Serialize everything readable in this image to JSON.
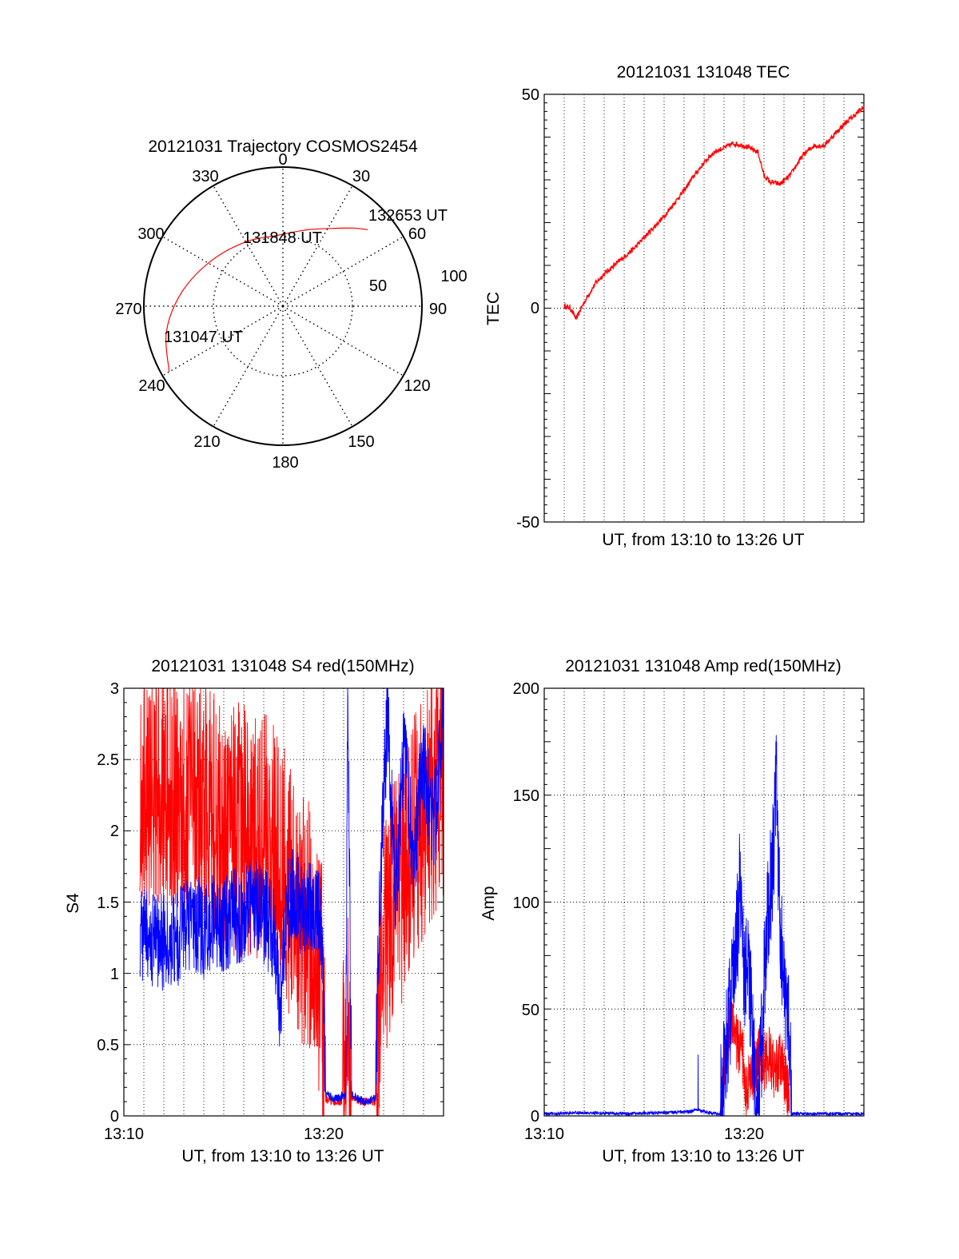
{
  "chart_data": [
    {
      "type": "polar",
      "title": "20121031 Trajectory COSMOS2454",
      "azimuth_labels": [
        "0",
        "30",
        "60",
        "90",
        "120",
        "150",
        "180",
        "210",
        "240",
        "270",
        "300",
        "330"
      ],
      "radius_labels": [
        "50",
        "100"
      ],
      "series_color": "#ff0000",
      "trajectory": [
        {
          "az": 240,
          "el": 5
        },
        {
          "az": 258,
          "el": 13
        },
        {
          "az": 278,
          "el": 24
        },
        {
          "az": 302,
          "el": 35
        },
        {
          "az": 330,
          "el": 42
        },
        {
          "az": 356,
          "el": 44
        },
        {
          "az": 18,
          "el": 38
        },
        {
          "az": 33,
          "el": 30
        },
        {
          "az": 42,
          "el": 22
        },
        {
          "az": 48,
          "el": 16
        }
      ],
      "annotations": [
        {
          "text": "132653 UT",
          "az": 48,
          "el": 16
        },
        {
          "text": "131848 UT",
          "az": 356,
          "el": 44
        },
        {
          "text": "131047 UT",
          "az": 240,
          "el": 5
        }
      ]
    },
    {
      "type": "line",
      "title": "20121031 131048 TEC",
      "xlabel": "UT, from 13:10 to 13:26 UT",
      "ylabel": "TEC",
      "xlim_min": [
        10.0,
        26.0
      ],
      "ylim": [
        -50,
        50
      ],
      "yticks": [
        "50",
        "0",
        "-50"
      ],
      "grid": true,
      "series": [
        {
          "color": "#ff0000",
          "points": [
            [
              11.0,
              0.5
            ],
            [
              11.3,
              0
            ],
            [
              11.6,
              -2.5
            ],
            [
              11.9,
              0.5
            ],
            [
              12.2,
              3
            ],
            [
              12.6,
              6
            ],
            [
              13.0,
              8
            ],
            [
              13.5,
              10
            ],
            [
              14.0,
              12
            ],
            [
              14.5,
              14
            ],
            [
              15.0,
              16.5
            ],
            [
              15.5,
              19
            ],
            [
              16.0,
              21.5
            ],
            [
              16.5,
              24.5
            ],
            [
              17.0,
              27.5
            ],
            [
              17.5,
              31
            ],
            [
              18.0,
              34
            ],
            [
              18.5,
              36.5
            ],
            [
              19.0,
              37.5
            ],
            [
              19.5,
              38.5
            ],
            [
              20.0,
              38
            ],
            [
              20.7,
              36.5
            ],
            [
              21.0,
              31
            ],
            [
              21.3,
              29.5
            ],
            [
              21.8,
              29
            ],
            [
              22.3,
              31
            ],
            [
              22.7,
              34
            ],
            [
              23.0,
              36
            ],
            [
              23.5,
              38
            ],
            [
              24.0,
              38
            ],
            [
              24.5,
              40.5
            ],
            [
              25.0,
              43
            ],
            [
              25.5,
              45
            ],
            [
              26.0,
              47
            ]
          ]
        }
      ]
    },
    {
      "type": "line",
      "title": "20121031 131048 S4 red(150MHz)",
      "xlabel": "UT, from 13:10 to 13:26 UT",
      "ylabel": "S4",
      "xlim_min": [
        10.0,
        26.0
      ],
      "ylim": [
        0,
        3
      ],
      "xticks": [
        "13:10",
        "13:20"
      ],
      "yticks": [
        "0",
        "0.5",
        "1",
        "1.5",
        "2",
        "2.5",
        "3"
      ],
      "grid": true,
      "series": [
        {
          "color": "#ff0000",
          "points": [
            [
              10.8,
              2.3
            ],
            [
              11.5,
              2.4
            ],
            [
              12.5,
              2.3
            ],
            [
              13.5,
              2.2
            ],
            [
              14.5,
              2.1
            ],
            [
              15.5,
              2.0
            ],
            [
              16.5,
              2.0
            ],
            [
              17.5,
              1.9
            ],
            [
              18.3,
              1.6
            ],
            [
              18.8,
              1.4
            ],
            [
              19.3,
              1.3
            ],
            [
              19.6,
              1.1
            ],
            [
              19.9,
              0.9
            ],
            [
              20.1,
              0.12
            ],
            [
              20.5,
              0.1
            ],
            [
              20.9,
              0.1
            ],
            [
              21.2,
              0.7
            ],
            [
              21.4,
              0.12
            ],
            [
              22.0,
              0.1
            ],
            [
              22.6,
              0.1
            ],
            [
              23.0,
              1.3
            ],
            [
              23.5,
              1.5
            ],
            [
              24.0,
              1.7
            ],
            [
              24.5,
              1.9
            ],
            [
              25.0,
              2.1
            ],
            [
              25.5,
              2.3
            ],
            [
              26.0,
              2.4
            ]
          ]
        },
        {
          "color": "#0000ff",
          "points": [
            [
              10.8,
              1.3
            ],
            [
              11.5,
              1.25
            ],
            [
              12.3,
              1.2
            ],
            [
              13.0,
              1.3
            ],
            [
              13.5,
              1.35
            ],
            [
              14.0,
              1.3
            ],
            [
              14.5,
              1.4
            ],
            [
              15.0,
              1.35
            ],
            [
              15.5,
              1.4
            ],
            [
              16.0,
              1.4
            ],
            [
              16.5,
              1.5
            ],
            [
              17.0,
              1.4
            ],
            [
              17.5,
              1.3
            ],
            [
              17.8,
              0.75
            ],
            [
              18.1,
              1.4
            ],
            [
              18.6,
              1.6
            ],
            [
              19.0,
              1.4
            ],
            [
              19.5,
              1.5
            ],
            [
              19.9,
              1.3
            ],
            [
              20.1,
              0.15
            ],
            [
              20.6,
              0.12
            ],
            [
              21.1,
              0.15
            ],
            [
              21.2,
              3.0
            ],
            [
              21.4,
              0.15
            ],
            [
              22.0,
              0.1
            ],
            [
              22.6,
              0.12
            ],
            [
              22.8,
              1.6
            ],
            [
              23.2,
              2.8
            ],
            [
              23.6,
              1.5
            ],
            [
              24.0,
              2.6
            ],
            [
              24.5,
              1.8
            ],
            [
              25.0,
              2.5
            ],
            [
              25.5,
              2.0
            ],
            [
              26.0,
              2.8
            ]
          ]
        }
      ]
    },
    {
      "type": "line",
      "title": "20121031 131048 Amp red(150MHz)",
      "xlabel": "UT, from 13:10 to 13:26 UT",
      "ylabel": "Amp",
      "xlim_min": [
        10.0,
        26.0
      ],
      "ylim": [
        0,
        200
      ],
      "xticks": [
        "13:10",
        "13:20"
      ],
      "yticks": [
        "0",
        "50",
        "100",
        "150",
        "200"
      ],
      "grid": true,
      "series": [
        {
          "color": "#ff0000",
          "points": [
            [
              18.8,
              0
            ],
            [
              19.0,
              20
            ],
            [
              19.3,
              45
            ],
            [
              19.6,
              35
            ],
            [
              19.9,
              30
            ],
            [
              20.1,
              12
            ],
            [
              20.5,
              22
            ],
            [
              20.8,
              30
            ],
            [
              21.0,
              25
            ],
            [
              21.3,
              30
            ],
            [
              21.5,
              20
            ],
            [
              21.8,
              25
            ],
            [
              22.1,
              18
            ],
            [
              22.3,
              0
            ]
          ]
        },
        {
          "color": "#0000ff",
          "points": [
            [
              10.0,
              1
            ],
            [
              12.0,
              1.5
            ],
            [
              14.0,
              1
            ],
            [
              16.0,
              1.5
            ],
            [
              17.3,
              2
            ],
            [
              17.7,
              3
            ],
            [
              18.2,
              1.5
            ],
            [
              18.8,
              1
            ],
            [
              19.0,
              25
            ],
            [
              19.3,
              50
            ],
            [
              19.6,
              75
            ],
            [
              19.8,
              110
            ],
            [
              20.0,
              60
            ],
            [
              20.2,
              80
            ],
            [
              20.5,
              20
            ],
            [
              20.7,
              1
            ],
            [
              21.0,
              60
            ],
            [
              21.2,
              95
            ],
            [
              21.5,
              125
            ],
            [
              21.6,
              160
            ],
            [
              21.8,
              90
            ],
            [
              22.0,
              60
            ],
            [
              22.2,
              45
            ],
            [
              22.4,
              1
            ],
            [
              23.0,
              1
            ],
            [
              24.0,
              1
            ],
            [
              25.0,
              1
            ],
            [
              26.0,
              1
            ]
          ]
        }
      ]
    }
  ]
}
